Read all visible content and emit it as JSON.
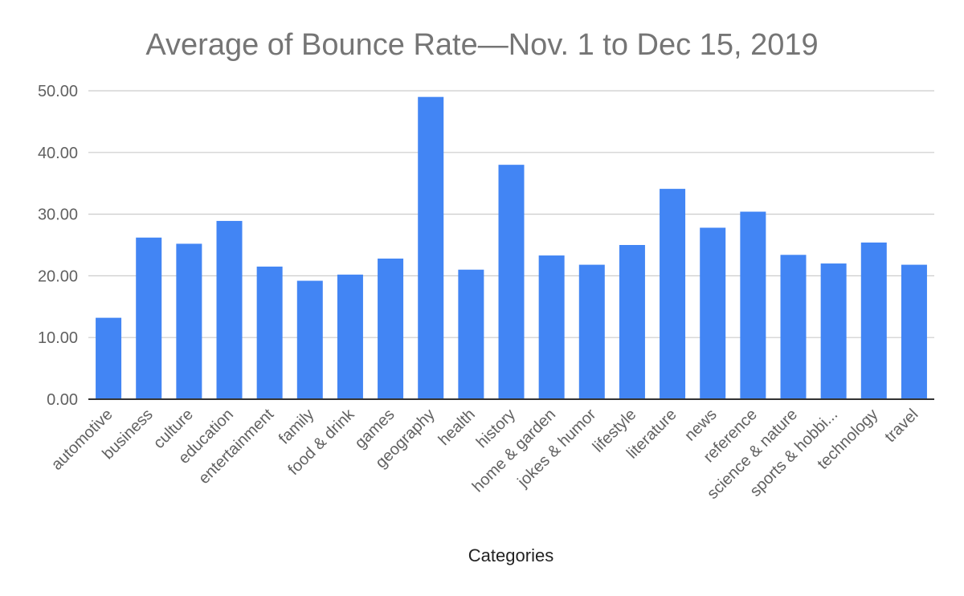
{
  "chart_data": {
    "type": "bar",
    "title": "Average of Bounce Rate—Nov. 1 to Dec 15, 2019",
    "xlabel": "Categories",
    "ylabel": "",
    "ylim": [
      0,
      50
    ],
    "yticks": [
      "0.00",
      "10.00",
      "20.00",
      "30.00",
      "40.00",
      "50.00"
    ],
    "grid": true,
    "categories": [
      "automotive",
      "business",
      "culture",
      "education",
      "entertainment",
      "family",
      "food & drink",
      "games",
      "geography",
      "health",
      "history",
      "home & garden",
      "jokes & humor",
      "lifestyle",
      "literature",
      "news",
      "reference",
      "science & nature",
      "sports & hobbi...",
      "technology",
      "travel"
    ],
    "series": [
      {
        "name": "Average of Bounce Rate",
        "values": [
          13.2,
          26.2,
          25.2,
          28.9,
          21.5,
          19.2,
          20.2,
          22.8,
          49.0,
          21.0,
          38.0,
          23.3,
          21.8,
          25.0,
          34.1,
          27.8,
          30.4,
          23.4,
          22.0,
          25.4,
          21.8
        ]
      }
    ],
    "colors": {
      "bar": "#4285f4",
      "grid": "#cccccc",
      "axis": "#333333"
    }
  }
}
